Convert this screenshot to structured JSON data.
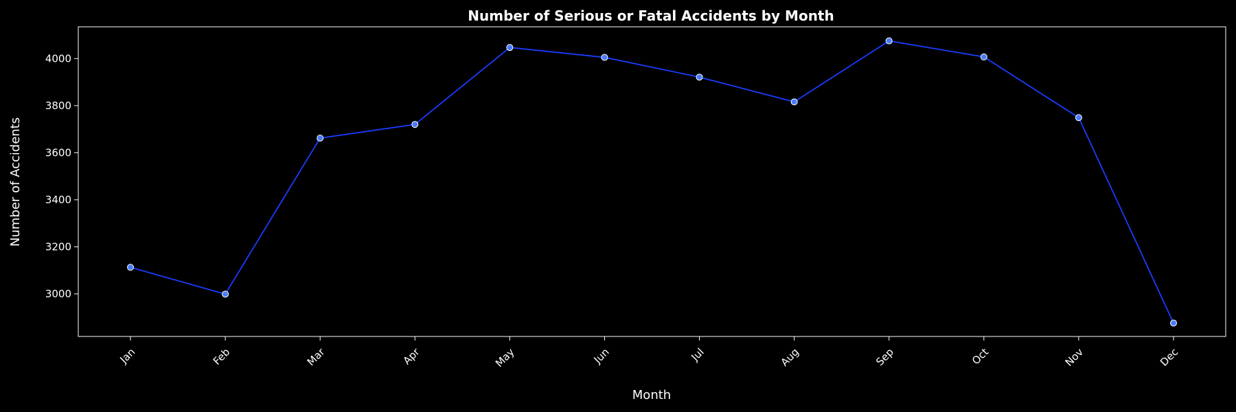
{
  "chart_data": {
    "type": "line",
    "title": "Number of Serious or Fatal Accidents by Month",
    "xlabel": "Month",
    "ylabel": "Number of Accidents",
    "categories": [
      "Jan",
      "Feb",
      "Mar",
      "Apr",
      "May",
      "Jun",
      "Jul",
      "Aug",
      "Sep",
      "Oct",
      "Nov",
      "Dec"
    ],
    "series": [
      {
        "values": [
          3113,
          2999,
          3662,
          3720,
          4047,
          4005,
          3921,
          3816,
          4075,
          4007,
          3749,
          2876
        ]
      }
    ],
    "ylim": [
      2819,
      4135
    ],
    "yticks": [
      3000,
      3200,
      3400,
      3600,
      3800,
      4000
    ],
    "grid": false,
    "line_color": "#1a3cff",
    "marker_fill": "#4a7cff",
    "marker_edge": "#ffffff",
    "background": "#000000",
    "text_color": "#ffffff"
  }
}
